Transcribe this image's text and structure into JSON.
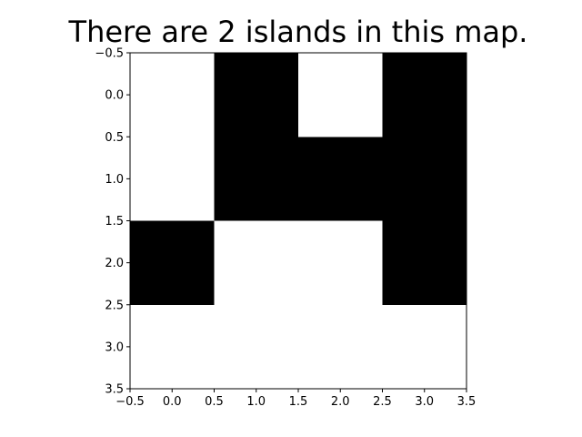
{
  "chart_data": {
    "type": "heatmap",
    "title": "There are 2 islands in this map.",
    "xlabel": "",
    "ylabel": "",
    "grid": [
      [
        0,
        1,
        0,
        1
      ],
      [
        0,
        1,
        1,
        1
      ],
      [
        1,
        0,
        0,
        1
      ],
      [
        0,
        0,
        0,
        0
      ]
    ],
    "xlim": [
      -0.5,
      3.5
    ],
    "ylim": [
      3.5,
      -0.5
    ],
    "xticks": [
      "−0.5",
      "0.0",
      "0.5",
      "1.0",
      "1.5",
      "2.0",
      "2.5",
      "3.0",
      "3.5"
    ],
    "yticks": [
      "−0.5",
      "0.0",
      "0.5",
      "1.0",
      "1.5",
      "2.0",
      "2.5",
      "3.0",
      "3.5"
    ],
    "colors": {
      "land": "#000000",
      "water": "#ffffff"
    }
  }
}
